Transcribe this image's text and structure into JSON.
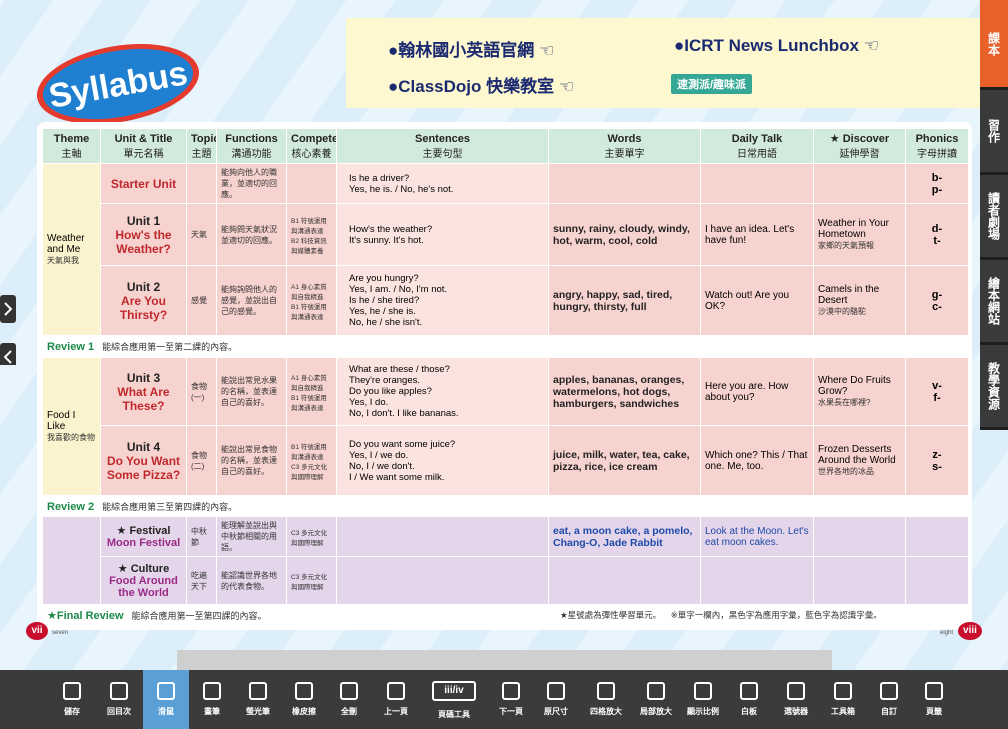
{
  "header": {
    "logo": "Syllabus",
    "links": [
      "●翰林國小英語官網 ☜",
      "●ICRT News Lunchbox ☜",
      "●ClassDojo 快樂教室 ☜"
    ],
    "badge": "速測派/趣味派"
  },
  "side_tabs": [
    "課本",
    "習作",
    "讀者劇場",
    "繪本網站",
    "教學資源"
  ],
  "table": {
    "headers": [
      {
        "en": "Theme",
        "zh": "主軸"
      },
      {
        "en": "Unit & Title",
        "zh": "單元名稱"
      },
      {
        "en": "Topic",
        "zh": "主題"
      },
      {
        "en": "Functions",
        "zh": "溝通功能"
      },
      {
        "en": "Competency",
        "zh": "核心素養"
      },
      {
        "en": "Sentences",
        "zh": "主要句型"
      },
      {
        "en": "Words",
        "zh": "主要單字"
      },
      {
        "en": "Daily Talk",
        "zh": "日常用語"
      },
      {
        "en": "★ Discover",
        "zh": "延伸學習"
      },
      {
        "en": "Phonics",
        "zh": "字母拼讀"
      }
    ],
    "themes": [
      {
        "en": "Weather and Me",
        "zh": "天氣與我"
      },
      {
        "en": "Food I Like",
        "zh": "我喜歡的食物"
      }
    ],
    "rows": [
      {
        "unit": "Starter Unit",
        "functions": "能夠向他人的職業，並適切的回應。",
        "sentences": [
          "Is he a driver?",
          "Yes, he is. / No, he's not."
        ],
        "phonics": [
          "b-",
          "p-"
        ]
      },
      {
        "unit": "Unit 1",
        "title": "How's the Weather?",
        "topic": "天氣",
        "functions": "能夠問天氣狀況並適切的回應。",
        "competency": "B1 符號運用與溝通表達 B2 科技資訊與媒體素養",
        "sentences": [
          "How's the weather?",
          "It's sunny. It's hot."
        ],
        "words": "sunny, rainy, cloudy, windy, hot, warm, cool, cold",
        "daily": "I have an idea. Let's have fun!",
        "discover": "Weather in Your Hometown",
        "discover_zh": "家鄉的天氣預報",
        "phonics": [
          "d-",
          "t-"
        ]
      },
      {
        "unit": "Unit 2",
        "title": "Are You Thirsty?",
        "topic": "感覺",
        "functions": "能夠詢問他人的感覺，並說出自己的感覺。",
        "competency": "A1 身心素質與自我精進 B1 符號運用與溝通表達",
        "sentences": [
          "Are you hungry?",
          "Yes, I am. / No, I'm not.",
          "Is he / she tired?",
          "Yes, he / she is.",
          "No, he / she isn't."
        ],
        "words": "angry, happy, sad, tired, hungry, thirsty, full",
        "daily": "Watch out! Are you OK?",
        "discover": "Camels in the Desert",
        "discover_zh": "沙漠中的駱駝",
        "phonics": [
          "g-",
          "c-"
        ]
      },
      {
        "review": "Review 1",
        "note": "能綜合應用第一至第二課的內容。"
      },
      {
        "unit": "Unit 3",
        "title": "What Are These?",
        "topic": "食物(一)",
        "functions": "能說出常見水果的名稱，並表達自己的喜好。",
        "competency": "A1 身心素質與自我精進 B1 符號運用與溝通表達",
        "sentences": [
          "What are these / those?",
          "They're oranges.",
          "Do you like apples?",
          "Yes, I do.",
          "No, I don't. I like bananas."
        ],
        "words": "apples, bananas, oranges, watermelons, hot dogs, hamburgers, sandwiches",
        "daily": "Here you are. How about you?",
        "discover": "Where Do Fruits Grow?",
        "discover_zh": "水果長在哪裡?",
        "phonics": [
          "v-",
          "f-"
        ]
      },
      {
        "unit": "Unit 4",
        "title": "Do You Want Some Pizza?",
        "topic": "食物(二)",
        "functions": "能說出常見食物的名稱，並表達自己的喜好。",
        "competency": "B1 符號運用與溝通表達 C3 多元文化與國際理解",
        "sentences": [
          "Do you want some juice?",
          "Yes, I / we do.",
          "No, I / we don't.",
          "I / We want some milk."
        ],
        "words": "juice, milk, water, tea, cake, pizza, rice, ice cream",
        "daily": "Which one? This / That one. Me, too.",
        "discover": "Frozen Desserts Around the World",
        "discover_zh": "世界各地的冰品",
        "phonics": [
          "z-",
          "s-"
        ]
      },
      {
        "review": "Review 2",
        "note": "能綜合應用第三至第四課的內容。"
      },
      {
        "unit": "★ Festival",
        "title": "Moon Festival",
        "topic": "中秋節",
        "functions": "能理解並說出與中秋節相關的用語。",
        "competency": "C3 多元文化與國際理解",
        "words": "eat, a moon cake, a pomelo, Chang-O, Jade Rabbit",
        "daily": "Look at the Moon. Let's eat moon cakes."
      },
      {
        "unit": "★ Culture",
        "title": "Food Around the World",
        "topic": "吃遍天下",
        "functions": "能認識世界各地的代表食物。",
        "competency": "C3 多元文化與國際理解"
      },
      {
        "review": "★Final Review",
        "note": "能綜合應用第一至第四課的內容。"
      }
    ]
  },
  "notes": [
    "★星號處為彈性學習單元。",
    "※單字一欄內，黑色字為應用字彙，藍色字為認識字彙。"
  ],
  "pages": {
    "left": "vii",
    "left_word": "seven",
    "right_word": "eight",
    "right": "viii"
  },
  "toolbar": {
    "page_box": "iii/iv",
    "items": [
      "儲存",
      "回目次",
      "滑鼠",
      "畫筆",
      "螢光筆",
      "橡皮擦",
      "全刪",
      "上一頁",
      "頁碼工具",
      "下一頁",
      "原尺寸",
      "四格放大",
      "局部放大",
      "顯示比例",
      "白板",
      "選號器",
      "工具箱",
      "自訂",
      "頁籤"
    ]
  }
}
